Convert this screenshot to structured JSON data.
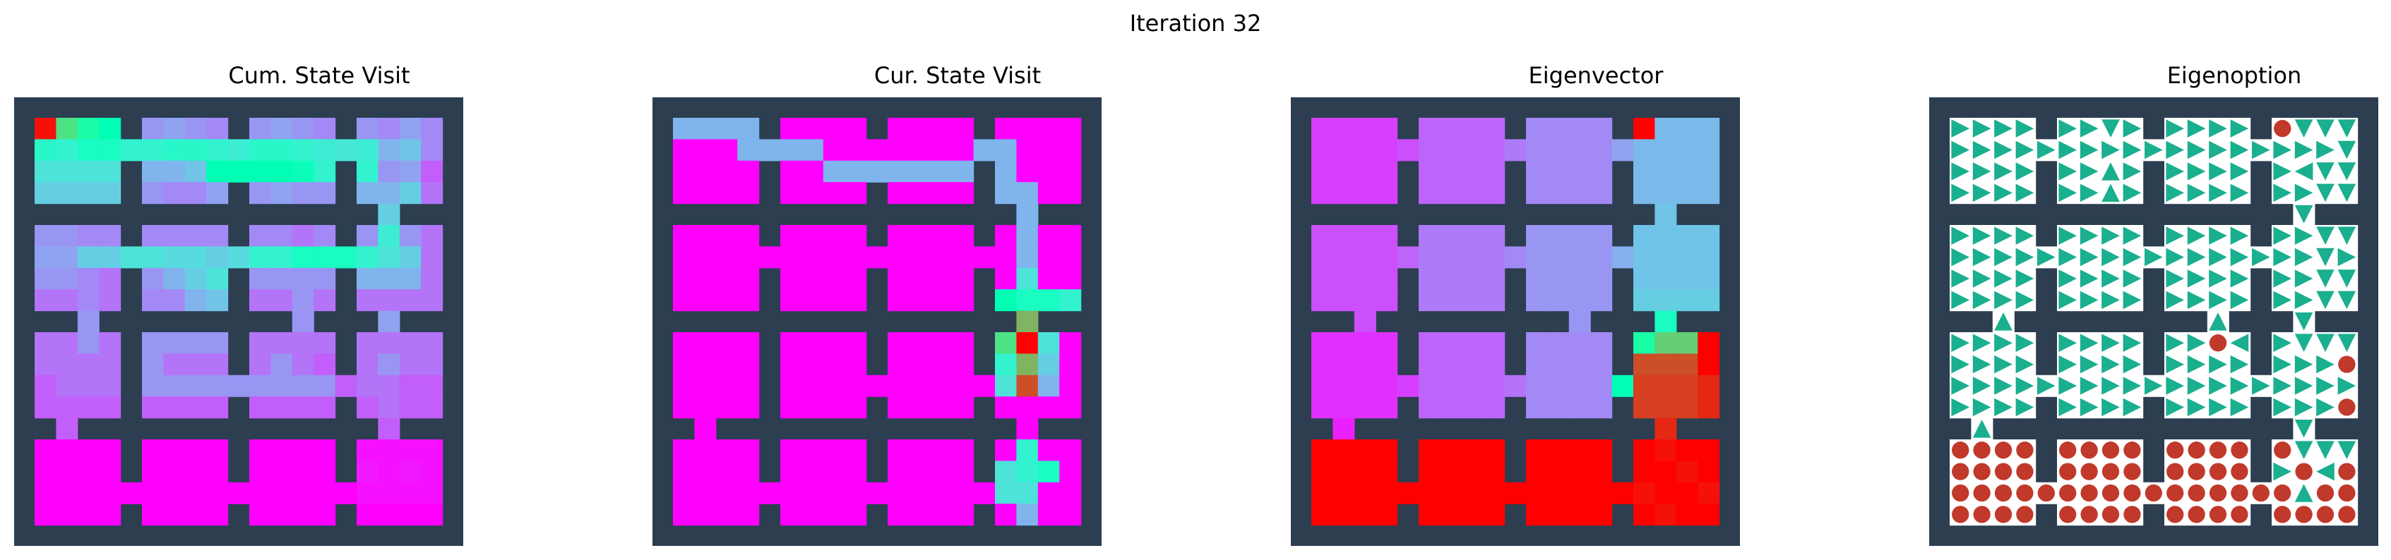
{
  "figure": {
    "suptitle": "Iteration 32"
  },
  "colors": {
    "wall": "#2c3e50",
    "tile": "#ffffff",
    "arrow": "#1aaf8e",
    "terminate": "#c0392b"
  },
  "chart_data": [
    {
      "type": "heatmap",
      "title": "Cum. State Visit",
      "colormap": "rainbow",
      "rows": [
        [
          0.98,
          0.65,
          0.55,
          0.5,
          null,
          0.2,
          0.22,
          0.2,
          0.18,
          null,
          0.2,
          0.22,
          0.2,
          0.18,
          null,
          0.2,
          0.18,
          0.22,
          0.18
        ],
        [
          0.42,
          0.4,
          0.45,
          0.45,
          0.4,
          0.4,
          0.42,
          0.42,
          0.4,
          0.38,
          0.42,
          0.42,
          0.4,
          0.38,
          0.36,
          0.38,
          0.25,
          0.28,
          0.18
        ],
        [
          0.35,
          0.35,
          0.35,
          0.35,
          null,
          0.25,
          0.25,
          0.28,
          0.5,
          0.5,
          0.5,
          0.5,
          0.48,
          0.4,
          null,
          0.4,
          0.2,
          0.22,
          0.12
        ],
        [
          0.3,
          0.3,
          0.3,
          0.3,
          null,
          0.2,
          0.18,
          0.18,
          0.22,
          null,
          0.2,
          0.22,
          0.2,
          0.2,
          null,
          0.25,
          0.25,
          0.3,
          0.15
        ],
        [
          null,
          null,
          null,
          null,
          null,
          null,
          null,
          null,
          null,
          null,
          null,
          null,
          null,
          null,
          null,
          null,
          0.3,
          null,
          null
        ],
        [
          0.2,
          0.2,
          0.18,
          0.18,
          null,
          0.18,
          0.18,
          0.18,
          0.18,
          null,
          0.18,
          0.18,
          0.15,
          0.18,
          null,
          0.2,
          0.38,
          0.2,
          0.15
        ],
        [
          0.22,
          0.22,
          0.3,
          0.3,
          0.35,
          0.35,
          0.33,
          0.33,
          0.3,
          0.33,
          0.4,
          0.4,
          0.45,
          0.45,
          0.45,
          0.4,
          0.35,
          0.3,
          0.15
        ],
        [
          0.2,
          0.2,
          0.18,
          0.15,
          null,
          0.2,
          0.25,
          0.3,
          0.35,
          null,
          0.2,
          0.2,
          0.2,
          0.2,
          null,
          0.25,
          0.25,
          0.25,
          0.15
        ],
        [
          0.15,
          0.15,
          0.18,
          0.15,
          null,
          0.18,
          0.18,
          0.25,
          0.28,
          null,
          0.15,
          0.15,
          0.2,
          0.15,
          null,
          0.15,
          0.15,
          0.15,
          0.15
        ],
        [
          null,
          null,
          0.2,
          null,
          null,
          null,
          null,
          null,
          null,
          null,
          null,
          null,
          0.2,
          null,
          null,
          null,
          0.22,
          null,
          null
        ],
        [
          0.15,
          0.15,
          0.2,
          0.15,
          null,
          0.2,
          0.2,
          0.2,
          0.2,
          null,
          0.15,
          0.15,
          0.15,
          0.15,
          null,
          0.15,
          0.15,
          0.15,
          0.15
        ],
        [
          0.15,
          0.15,
          0.15,
          0.15,
          null,
          0.2,
          0.15,
          0.15,
          0.15,
          null,
          0.15,
          0.2,
          0.15,
          0.12,
          null,
          0.15,
          0.2,
          0.15,
          0.15
        ],
        [
          0.12,
          0.15,
          0.15,
          0.15,
          null,
          0.2,
          0.2,
          0.2,
          0.2,
          0.2,
          0.2,
          0.2,
          0.2,
          0.2,
          0.12,
          0.15,
          0.15,
          0.12,
          0.12
        ],
        [
          0.12,
          0.12,
          0.12,
          0.12,
          null,
          0.12,
          0.12,
          0.12,
          0.12,
          null,
          0.12,
          0.12,
          0.12,
          0.12,
          null,
          0.12,
          0.15,
          0.12,
          0.12
        ],
        [
          null,
          0.12,
          null,
          null,
          null,
          null,
          null,
          null,
          null,
          null,
          null,
          null,
          null,
          null,
          null,
          null,
          0.12,
          null,
          null
        ],
        [
          0,
          0,
          0,
          0,
          null,
          0,
          0,
          0,
          0,
          null,
          0,
          0,
          0,
          0,
          null,
          0.02,
          0.02,
          0.02,
          0.02
        ],
        [
          0,
          0,
          0,
          0,
          null,
          0,
          0,
          0,
          0,
          null,
          0,
          0,
          0,
          0,
          null,
          0.03,
          0.02,
          0.03,
          0.02
        ],
        [
          0,
          0,
          0,
          0,
          0,
          0,
          0,
          0,
          0,
          0,
          0,
          0,
          0,
          0,
          0,
          0.02,
          0.02,
          0.02,
          0.02
        ],
        [
          0,
          0,
          0,
          0,
          null,
          0,
          0,
          0,
          0,
          null,
          0,
          0,
          0,
          0,
          null,
          0,
          0,
          0,
          0
        ]
      ]
    },
    {
      "type": "heatmap",
      "title": "Cur. State Visit",
      "colormap": "rainbow",
      "rows": [
        [
          0.25,
          0.25,
          0.25,
          0.25,
          null,
          0,
          0,
          0,
          0,
          null,
          0,
          0,
          0,
          0,
          null,
          0,
          0,
          0,
          0
        ],
        [
          0,
          0,
          0,
          0.25,
          0.25,
          0.25,
          0.25,
          0,
          0,
          0,
          0,
          0,
          0,
          0,
          0.25,
          0.25,
          0,
          0,
          0
        ],
        [
          0,
          0,
          0,
          0,
          null,
          0,
          0,
          0.25,
          0.25,
          0.25,
          0.25,
          0.25,
          0.25,
          0.25,
          null,
          0.25,
          0,
          0,
          0
        ],
        [
          0,
          0,
          0,
          0,
          null,
          0,
          0,
          0,
          0,
          null,
          0,
          0,
          0,
          0,
          null,
          0.25,
          0.25,
          0,
          0
        ],
        [
          null,
          null,
          null,
          null,
          null,
          null,
          null,
          null,
          null,
          null,
          null,
          null,
          null,
          null,
          null,
          null,
          0.25,
          null,
          null
        ],
        [
          0,
          0,
          0,
          0,
          null,
          0,
          0,
          0,
          0,
          null,
          0,
          0,
          0,
          0,
          null,
          0,
          0.25,
          0,
          0
        ],
        [
          0,
          0,
          0,
          0,
          0,
          0,
          0,
          0,
          0,
          0,
          0,
          0,
          0,
          0,
          0,
          0,
          0.25,
          0,
          0
        ],
        [
          0,
          0,
          0,
          0,
          null,
          0,
          0,
          0,
          0,
          null,
          0,
          0,
          0,
          0,
          null,
          0,
          0.35,
          0,
          0
        ],
        [
          0,
          0,
          0,
          0,
          null,
          0,
          0,
          0,
          0,
          null,
          0,
          0,
          0,
          0,
          null,
          0.5,
          0.45,
          0.45,
          0.4
        ],
        [
          null,
          null,
          null,
          null,
          null,
          null,
          null,
          null,
          null,
          null,
          null,
          null,
          null,
          null,
          null,
          null,
          0.75,
          null,
          null
        ],
        [
          0,
          0,
          0,
          0,
          null,
          0,
          0,
          0,
          0,
          null,
          0,
          0,
          0,
          0,
          null,
          0.65,
          1.0,
          0.35,
          0
        ],
        [
          0,
          0,
          0,
          0,
          null,
          0,
          0,
          0,
          0,
          null,
          0,
          0,
          0,
          0,
          null,
          0.4,
          0.75,
          0.3,
          0
        ],
        [
          0,
          0,
          0,
          0,
          null,
          0,
          0,
          0,
          0,
          0,
          0,
          0,
          0,
          0,
          0,
          0.35,
          0.9,
          0.25,
          0
        ],
        [
          0,
          0,
          0,
          0,
          null,
          0,
          0,
          0,
          0,
          null,
          0,
          0,
          0,
          0,
          null,
          0,
          0,
          0,
          0
        ],
        [
          null,
          0,
          null,
          null,
          null,
          null,
          null,
          null,
          null,
          null,
          null,
          null,
          null,
          null,
          null,
          null,
          0,
          null,
          null
        ],
        [
          0,
          0,
          0,
          0,
          null,
          0,
          0,
          0,
          0,
          null,
          0,
          0,
          0,
          0,
          null,
          0,
          0.4,
          0,
          0
        ],
        [
          0,
          0,
          0,
          0,
          null,
          0,
          0,
          0,
          0,
          null,
          0,
          0,
          0,
          0,
          null,
          0.35,
          0.4,
          0.45,
          0
        ],
        [
          0,
          0,
          0,
          0,
          0,
          0,
          0,
          0,
          0,
          0,
          0,
          0,
          0,
          0,
          0,
          0.35,
          0.35,
          0,
          0
        ],
        [
          0,
          0,
          0,
          0,
          null,
          0,
          0,
          0,
          0,
          null,
          0,
          0,
          0,
          0,
          null,
          0,
          0.25,
          0,
          0
        ]
      ]
    },
    {
      "type": "heatmap",
      "title": "Eigenvector",
      "colormap": "rainbow",
      "rows": [
        [
          0.08,
          0.08,
          0.08,
          0.08,
          null,
          0.13,
          0.13,
          0.13,
          0.13,
          null,
          0.18,
          0.18,
          0.18,
          0.18,
          null,
          1.0,
          0.26,
          0.26,
          0.26
        ],
        [
          0.08,
          0.08,
          0.08,
          0.08,
          0.1,
          0.13,
          0.13,
          0.13,
          0.13,
          0.16,
          0.18,
          0.18,
          0.18,
          0.18,
          0.22,
          0.26,
          0.26,
          0.26,
          0.26
        ],
        [
          0.08,
          0.08,
          0.08,
          0.08,
          null,
          0.13,
          0.13,
          0.13,
          0.13,
          null,
          0.18,
          0.18,
          0.18,
          0.18,
          null,
          0.26,
          0.26,
          0.26,
          0.26
        ],
        [
          0.08,
          0.08,
          0.08,
          0.08,
          null,
          0.13,
          0.13,
          0.13,
          0.13,
          null,
          0.18,
          0.18,
          0.18,
          0.18,
          null,
          0.26,
          0.26,
          0.26,
          0.26
        ],
        [
          null,
          null,
          null,
          null,
          null,
          null,
          null,
          null,
          null,
          null,
          null,
          null,
          null,
          null,
          null,
          null,
          0.28,
          null,
          null
        ],
        [
          0.1,
          0.1,
          0.1,
          0.1,
          null,
          0.16,
          0.16,
          0.16,
          0.16,
          null,
          0.2,
          0.2,
          0.2,
          0.2,
          null,
          0.28,
          0.28,
          0.28,
          0.28
        ],
        [
          0.1,
          0.1,
          0.1,
          0.1,
          0.13,
          0.16,
          0.16,
          0.16,
          0.16,
          0.18,
          0.2,
          0.2,
          0.2,
          0.2,
          0.24,
          0.28,
          0.28,
          0.28,
          0.28
        ],
        [
          0.1,
          0.1,
          0.1,
          0.1,
          null,
          0.16,
          0.16,
          0.16,
          0.16,
          null,
          0.2,
          0.2,
          0.2,
          0.2,
          null,
          0.28,
          0.28,
          0.28,
          0.28
        ],
        [
          0.1,
          0.1,
          0.1,
          0.1,
          null,
          0.16,
          0.16,
          0.16,
          0.16,
          null,
          0.2,
          0.2,
          0.2,
          0.2,
          null,
          0.3,
          0.3,
          0.3,
          0.3
        ],
        [
          null,
          null,
          0.1,
          null,
          null,
          null,
          null,
          null,
          null,
          null,
          null,
          null,
          0.2,
          null,
          null,
          null,
          0.45,
          null,
          null
        ],
        [
          0.06,
          0.06,
          0.06,
          0.06,
          null,
          0.13,
          0.13,
          0.13,
          0.13,
          null,
          0.18,
          0.18,
          0.18,
          0.18,
          null,
          0.55,
          0.7,
          0.7,
          1.0
        ],
        [
          0.06,
          0.06,
          0.06,
          0.06,
          null,
          0.13,
          0.13,
          0.13,
          0.13,
          null,
          0.18,
          0.18,
          0.18,
          0.18,
          null,
          0.9,
          0.9,
          0.9,
          1.0
        ],
        [
          0.06,
          0.06,
          0.06,
          0.06,
          0.08,
          0.13,
          0.13,
          0.13,
          0.13,
          0.15,
          0.18,
          0.18,
          0.18,
          0.18,
          0.5,
          0.92,
          0.92,
          0.92,
          0.95
        ],
        [
          0.06,
          0.06,
          0.06,
          0.06,
          null,
          0.13,
          0.13,
          0.13,
          0.13,
          null,
          0.18,
          0.18,
          0.18,
          0.18,
          null,
          0.92,
          0.92,
          0.92,
          0.95
        ],
        [
          null,
          0.04,
          null,
          null,
          null,
          null,
          null,
          null,
          null,
          null,
          null,
          null,
          null,
          null,
          null,
          null,
          0.95,
          null,
          null
        ],
        [
          1.0,
          1.0,
          1.0,
          1.0,
          null,
          1.0,
          1.0,
          1.0,
          1.0,
          null,
          1.0,
          1.0,
          1.0,
          1.0,
          null,
          1.0,
          0.98,
          1.0,
          1.0
        ],
        [
          1.0,
          1.0,
          1.0,
          1.0,
          null,
          1.0,
          1.0,
          1.0,
          1.0,
          null,
          1.0,
          1.0,
          1.0,
          1.0,
          null,
          1.0,
          1.0,
          0.98,
          1.0
        ],
        [
          1.0,
          1.0,
          1.0,
          1.0,
          1.0,
          1.0,
          1.0,
          1.0,
          1.0,
          1.0,
          1.0,
          1.0,
          1.0,
          1.0,
          1.0,
          0.98,
          1.0,
          1.0,
          0.98
        ],
        [
          1.0,
          1.0,
          1.0,
          1.0,
          null,
          1.0,
          1.0,
          1.0,
          1.0,
          null,
          1.0,
          1.0,
          1.0,
          1.0,
          null,
          1.0,
          0.98,
          1.0,
          1.0
        ]
      ]
    },
    {
      "type": "policy_grid",
      "title": "Eigenoption",
      "legend_symbols": {
        "R": "arrow-right",
        "L": "arrow-left",
        "U": "arrow-up",
        "D": "arrow-down",
        "T": "terminate-circle"
      },
      "rows": [
        "RRRR.RRDR.RRRR.TDDD",
        "RRRRRRRRRRRRRRRRRRD",
        "RRRR.RRUR.RRRR.RLDD",
        "RRRR.RRUR.RRRR.RRDD",
        "................D..",
        "RRRR.RRRR.RRRR.RRDD",
        "RRRRRRRRRRRRRRRRRDR",
        "RRRR.RRRR.RRRR.RRDD",
        "RRRR.RRRR.RRRR.RRDD",
        "..U.........U...D..",
        "RRRR.RRRR.RRTL.RDDD",
        "RRRR.RRRR.RRRR.RRRT",
        "RRRRRRRRRRRRRRRRRRR",
        "RRRR.RRRR.RRRR.RRRT",
        ".U..............D..",
        "TTTT.TTTT.TTTT.TDDD",
        "TTTT.TTTT.TTTT.RTLT",
        "TTTTTTTTTTTTTTTTUTT",
        "TTTT.TTTT.TTTT.TTTT"
      ]
    }
  ]
}
